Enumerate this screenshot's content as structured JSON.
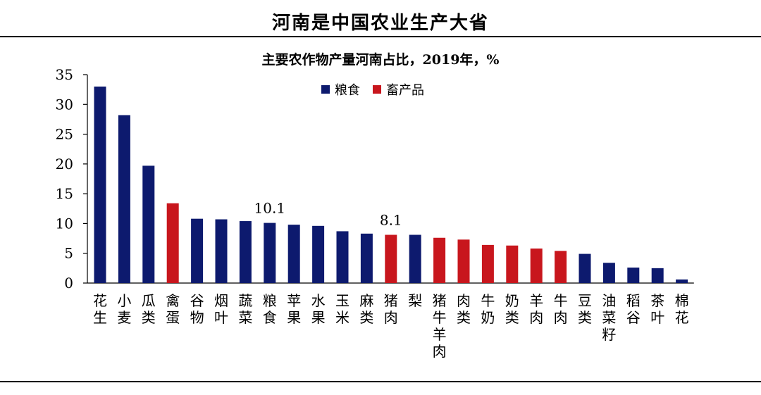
{
  "page": {
    "title": "河南是中国农业生产大省"
  },
  "chart_data": {
    "type": "bar",
    "title": "主要农作物产量河南占比，2019年，%",
    "xlabel": "",
    "ylabel": "",
    "ylim": [
      0,
      35
    ],
    "yticks": [
      0,
      5,
      10,
      15,
      20,
      25,
      30,
      35
    ],
    "grid": false,
    "legend_position": "top-center",
    "series": [
      {
        "name": "粮食",
        "color": "#0d1a6e"
      },
      {
        "name": "畜产品",
        "color": "#c8161d"
      }
    ],
    "categories": [
      "花生",
      "小麦",
      "瓜类",
      "禽蛋",
      "谷物",
      "烟叶",
      "蔬菜",
      "粮食",
      "苹果",
      "水果",
      "玉米",
      "麻类",
      "猪肉",
      "梨",
      "猪牛羊肉",
      "肉类",
      "牛奶",
      "奶类",
      "羊肉",
      "牛肉",
      "豆类",
      "油菜籽",
      "稻谷",
      "茶叶",
      "棉花"
    ],
    "values": [
      33.0,
      28.2,
      19.7,
      13.4,
      10.8,
      10.7,
      10.4,
      10.1,
      9.8,
      9.6,
      8.7,
      8.3,
      8.1,
      8.1,
      7.6,
      7.3,
      6.4,
      6.3,
      5.8,
      5.4,
      4.9,
      3.4,
      2.6,
      2.5,
      0.6
    ],
    "groups": [
      "粮食",
      "粮食",
      "粮食",
      "畜产品",
      "粮食",
      "粮食",
      "粮食",
      "粮食",
      "粮食",
      "粮食",
      "粮食",
      "粮食",
      "畜产品",
      "粮食",
      "畜产品",
      "畜产品",
      "畜产品",
      "畜产品",
      "畜产品",
      "畜产品",
      "粮食",
      "粮食",
      "粮食",
      "粮食",
      "粮食"
    ],
    "data_labels": [
      {
        "category": "粮食",
        "text": "10.1"
      },
      {
        "category": "猪肉",
        "text": "8.1"
      }
    ]
  }
}
